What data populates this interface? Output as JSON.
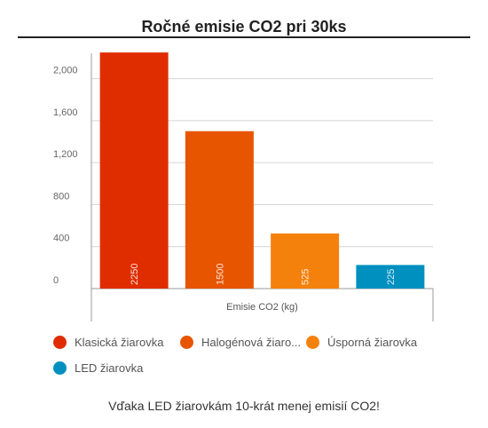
{
  "title": "Ročné emisie CO2 pri 30ks",
  "caption": "Vďaka LED žiarovkám 10-krát menej emisií CO2!",
  "chart_data": {
    "type": "bar",
    "title": "Ročné emisie CO2 pri 30ks",
    "xlabel": "Emisie CO2 (kg)",
    "ylabel": "",
    "ylim": [
      0,
      2200
    ],
    "yticks": [
      0,
      400,
      800,
      1200,
      1600,
      2000
    ],
    "ytick_labels": [
      "0",
      "400",
      "800",
      "1,200",
      "1,600",
      "2,000"
    ],
    "grid": true,
    "legend_position": "bottom",
    "series": [
      {
        "name": "Klasická žiarovka",
        "legend_label": "Klasická žiarovka",
        "value": 2250,
        "label": "2250",
        "color": "#e02d00"
      },
      {
        "name": "Halogénová žiarovka",
        "legend_label": "Halogénová žiaro...",
        "value": 1500,
        "label": "1500",
        "color": "#e85500"
      },
      {
        "name": "Úsporná žiarovka",
        "legend_label": "Úsporná žiarovka",
        "value": 525,
        "label": "525",
        "color": "#f5810d"
      },
      {
        "name": "LED žiarovka",
        "legend_label": "LED žiarovka",
        "value": 225,
        "label": "225",
        "color": "#0090c0"
      }
    ]
  }
}
